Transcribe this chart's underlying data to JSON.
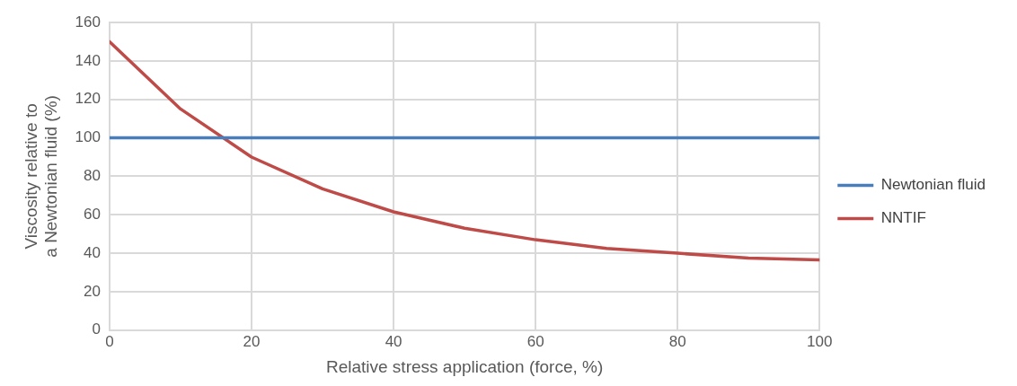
{
  "chart_data": {
    "type": "line",
    "xlabel": "Relative stress application (force, %)",
    "ylabel": "Viscosity relative to a Newtonian fluid (%)",
    "x": [
      0,
      10,
      20,
      30,
      40,
      50,
      60,
      70,
      80,
      90,
      100
    ],
    "series": [
      {
        "name": "Newtonian fluid",
        "color": "#4a7ebb",
        "values": [
          100,
          100,
          100,
          100,
          100,
          100,
          100,
          100,
          100,
          100,
          100
        ]
      },
      {
        "name": "NNTIF",
        "color": "#be4b48",
        "values": [
          150,
          115,
          90,
          73.5,
          61.5,
          53,
          47,
          42.5,
          40,
          37.5,
          36.5
        ]
      }
    ],
    "xlim": [
      0,
      100
    ],
    "xticks": [
      0,
      20,
      40,
      60,
      80,
      100
    ],
    "ylim": [
      0,
      160
    ],
    "yticks": [
      0,
      20,
      40,
      60,
      80,
      100,
      120,
      140,
      160
    ],
    "grid": true,
    "legend": "right",
    "marker": "none",
    "line_style": "solid"
  }
}
